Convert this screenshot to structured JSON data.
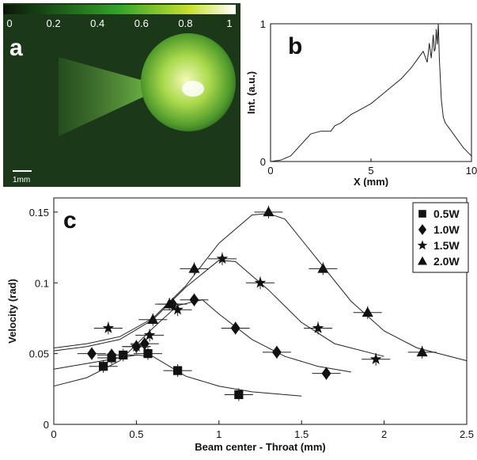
{
  "panel_a": {
    "letter": "a",
    "colorbar_ticks": [
      "0",
      "0.2",
      "0.4",
      "0.6",
      "0.8",
      "1"
    ],
    "scalebar_label": "1mm",
    "colors": {
      "background": "#1b3818",
      "beam": "#6bc23c",
      "bright": "#eaf6a0",
      "letter": "#ffffff"
    }
  },
  "chart_data": [
    {
      "id": "b",
      "type": "line",
      "panel_letter": "b",
      "xlabel": "X (mm)",
      "ylabel": "Int. (a.u.)",
      "xlim": [
        0,
        10
      ],
      "ylim": [
        0,
        1
      ],
      "xticks": [
        "0",
        "5",
        "10"
      ],
      "yticks": [
        "0",
        "1"
      ],
      "grid": false,
      "series": [
        {
          "x": [
            0.0,
            0.5,
            1.0,
            1.5,
            2.0,
            2.5,
            3.0,
            3.2,
            3.5,
            4.0,
            4.5,
            5.0,
            5.5,
            6.0,
            6.5,
            7.0,
            7.3,
            7.6,
            7.8,
            7.9,
            8.0,
            8.1,
            8.15,
            8.2,
            8.25,
            8.3,
            8.35,
            8.4,
            8.5,
            8.6,
            8.7,
            8.8,
            9.0,
            9.3,
            9.6,
            9.8,
            10.0
          ],
          "y": [
            0.0,
            0.01,
            0.04,
            0.12,
            0.2,
            0.22,
            0.22,
            0.26,
            0.28,
            0.34,
            0.38,
            0.42,
            0.48,
            0.54,
            0.6,
            0.68,
            0.74,
            0.8,
            0.72,
            0.86,
            0.75,
            0.92,
            0.8,
            0.82,
            0.96,
            0.85,
            1.0,
            0.75,
            0.45,
            0.32,
            0.28,
            0.26,
            0.22,
            0.16,
            0.1,
            0.07,
            0.04
          ]
        }
      ]
    },
    {
      "id": "c",
      "type": "scatter",
      "panel_letter": "c",
      "xlabel": "Beam center - Throat (mm)",
      "ylabel": "Velocity (rad)",
      "xlim": [
        0,
        2.5
      ],
      "ylim": [
        0,
        0.16
      ],
      "xticks": [
        "0",
        "0.5",
        "1",
        "1.5",
        "2",
        "2.5"
      ],
      "yticks": [
        "0",
        "0.05",
        "0.1",
        "0.15"
      ],
      "grid": false,
      "legend_position": "top-right",
      "series": [
        {
          "name": "0.5W",
          "marker": "square",
          "x": [
            0.3,
            0.35,
            0.42,
            0.57,
            0.75,
            1.12
          ],
          "y": [
            0.041,
            0.047,
            0.049,
            0.05,
            0.038,
            0.021
          ],
          "fit_x": [
            0.0,
            0.2,
            0.35,
            0.5,
            0.6,
            0.7,
            0.8,
            1.0,
            1.2,
            1.5
          ],
          "fit_y": [
            0.039,
            0.043,
            0.046,
            0.049,
            0.048,
            0.041,
            0.034,
            0.027,
            0.023,
            0.02
          ]
        },
        {
          "name": "1.0W",
          "marker": "diamond",
          "x": [
            0.23,
            0.35,
            0.5,
            0.55,
            0.72,
            0.85,
            1.1,
            1.35,
            1.65
          ],
          "y": [
            0.05,
            0.049,
            0.055,
            0.057,
            0.085,
            0.088,
            0.068,
            0.051,
            0.036
          ],
          "fit_x": [
            0.0,
            0.2,
            0.4,
            0.6,
            0.75,
            0.9,
            1.0,
            1.2,
            1.4,
            1.6,
            1.8
          ],
          "fit_y": [
            0.027,
            0.033,
            0.045,
            0.068,
            0.084,
            0.088,
            0.078,
            0.06,
            0.048,
            0.041,
            0.037
          ]
        },
        {
          "name": "1.5W",
          "marker": "star",
          "x": [
            0.33,
            0.5,
            0.58,
            0.75,
            1.02,
            1.25,
            1.6,
            1.95
          ],
          "y": [
            0.068,
            0.055,
            0.063,
            0.081,
            0.117,
            0.1,
            0.068,
            0.046
          ],
          "fit_x": [
            0.0,
            0.2,
            0.4,
            0.6,
            0.8,
            1.0,
            1.1,
            1.3,
            1.5,
            1.7,
            2.0
          ],
          "fit_y": [
            0.052,
            0.055,
            0.06,
            0.074,
            0.097,
            0.116,
            0.115,
            0.095,
            0.072,
            0.057,
            0.048
          ]
        },
        {
          "name": "2.0W",
          "marker": "triangle",
          "x": [
            0.6,
            0.7,
            0.85,
            1.3,
            1.63,
            1.9,
            2.23
          ],
          "y": [
            0.074,
            0.085,
            0.11,
            0.15,
            0.11,
            0.079,
            0.051
          ],
          "fit_x": [
            0.0,
            0.2,
            0.4,
            0.6,
            0.8,
            1.0,
            1.2,
            1.3,
            1.4,
            1.6,
            1.8,
            2.0,
            2.2,
            2.5
          ],
          "fit_y": [
            0.054,
            0.057,
            0.062,
            0.075,
            0.098,
            0.128,
            0.148,
            0.149,
            0.145,
            0.116,
            0.087,
            0.066,
            0.054,
            0.045
          ]
        }
      ]
    }
  ]
}
